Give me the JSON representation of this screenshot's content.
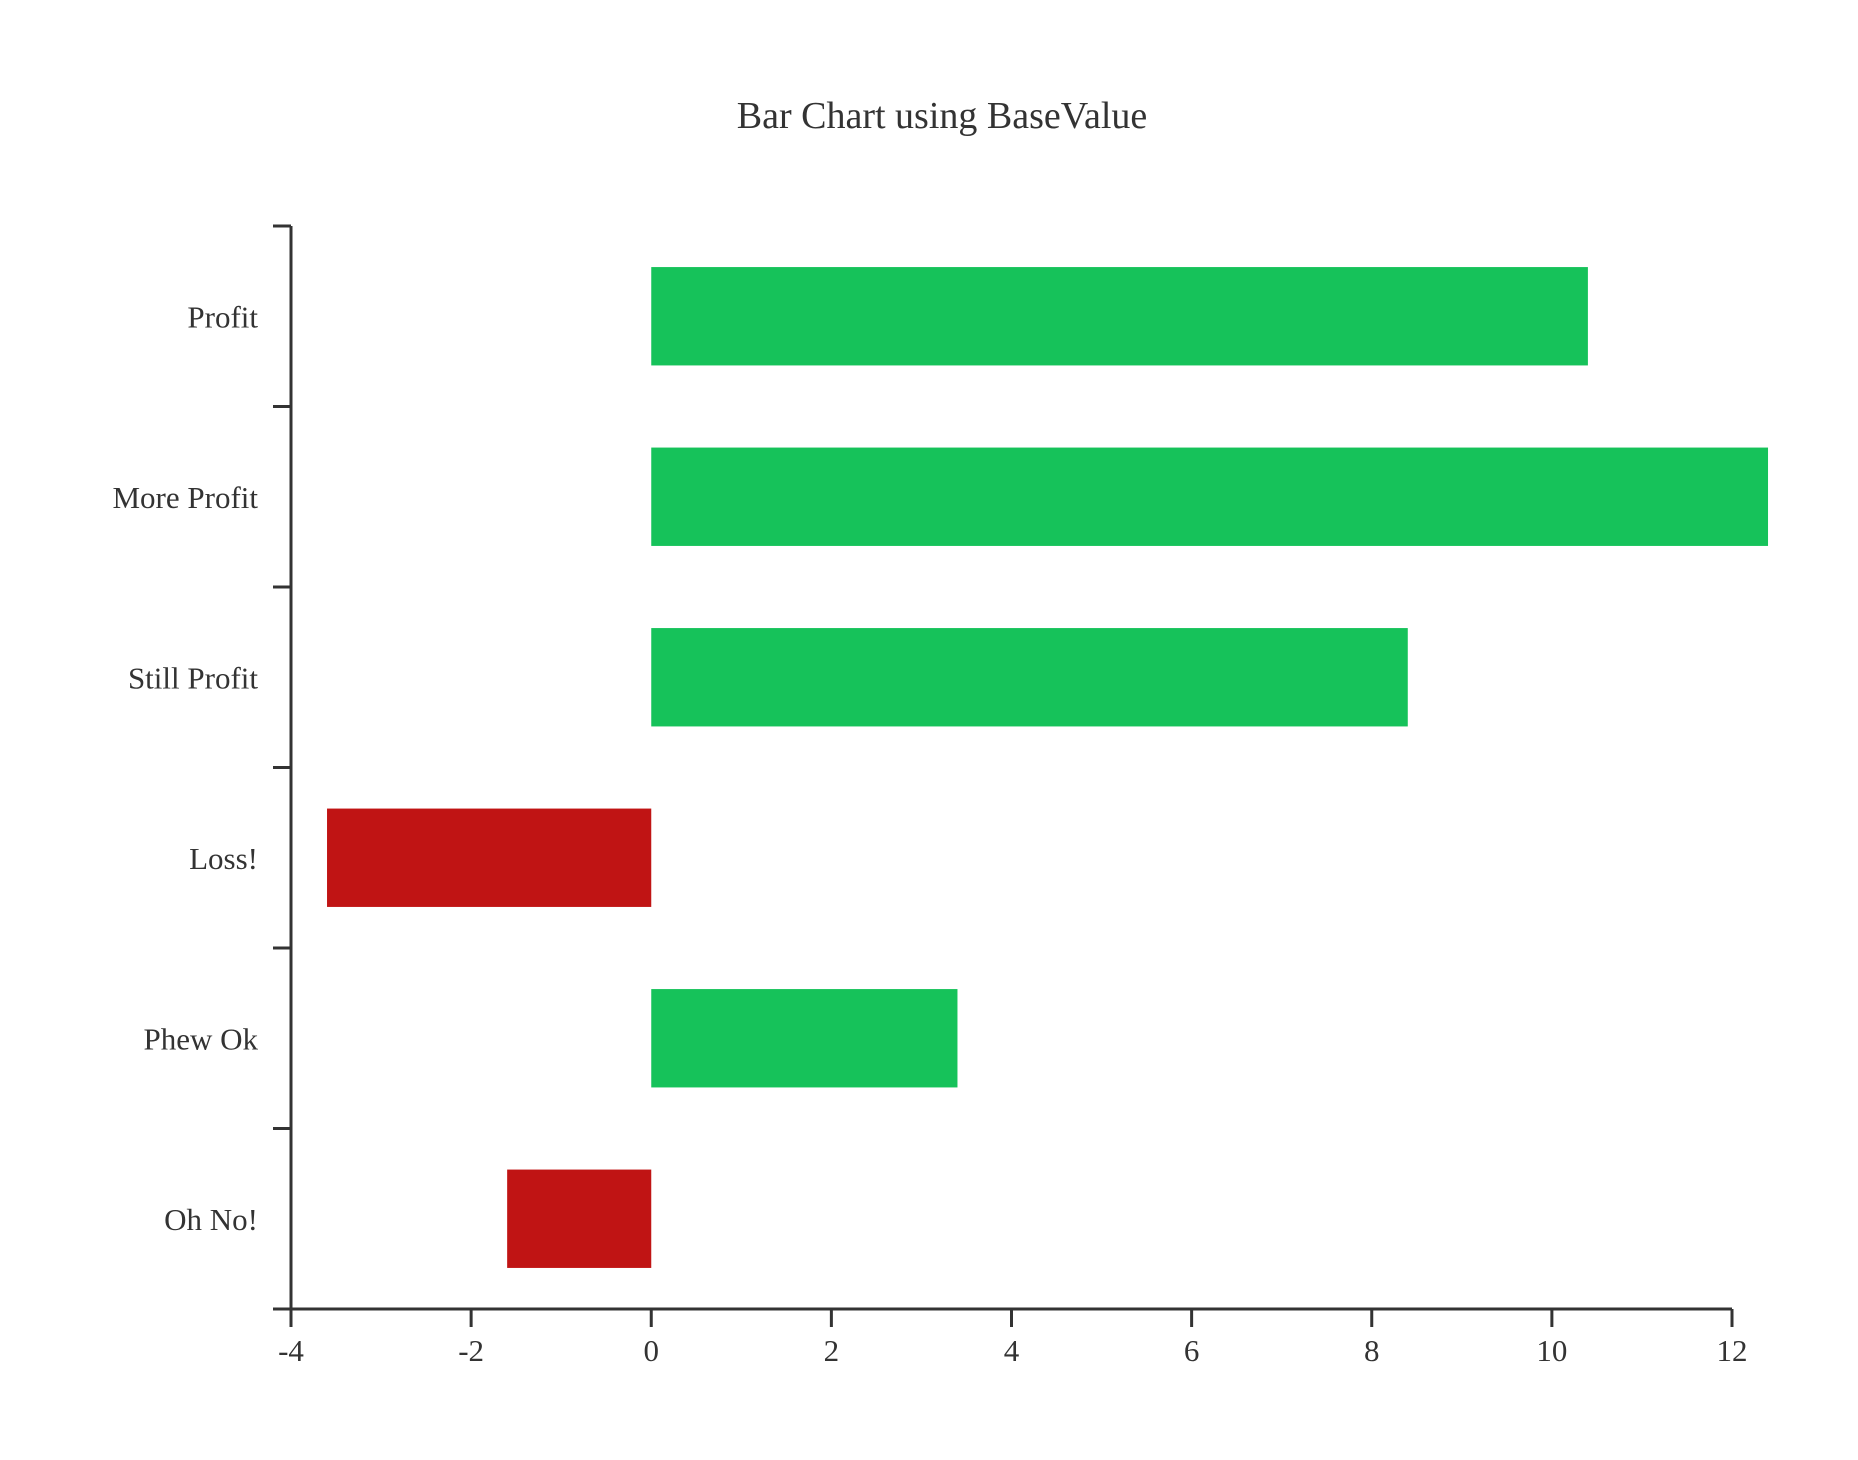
{
  "chart_data": {
    "type": "bar",
    "orientation": "horizontal",
    "title": "Bar Chart using BaseValue",
    "xlabel": "",
    "ylabel": "",
    "base_value": 0,
    "categories": [
      "Profit",
      "More Profit",
      "Still Profit",
      "Loss!",
      "Phew Ok",
      "Oh No!"
    ],
    "values": [
      10.4,
      12.4,
      8.4,
      -3.6,
      3.4,
      -1.6
    ],
    "xlim": [
      -4,
      12
    ],
    "x_ticks": [
      -4,
      -2,
      0,
      2,
      4,
      6,
      8,
      10,
      12
    ],
    "x_tick_labels": [
      "-4",
      "-2",
      "0",
      "2",
      "4",
      "6",
      "8",
      "10",
      "12"
    ],
    "grid": false,
    "colors": {
      "positive": "#16c25a",
      "negative": "#c01414",
      "axis": "#333333",
      "text": "#333333"
    }
  }
}
